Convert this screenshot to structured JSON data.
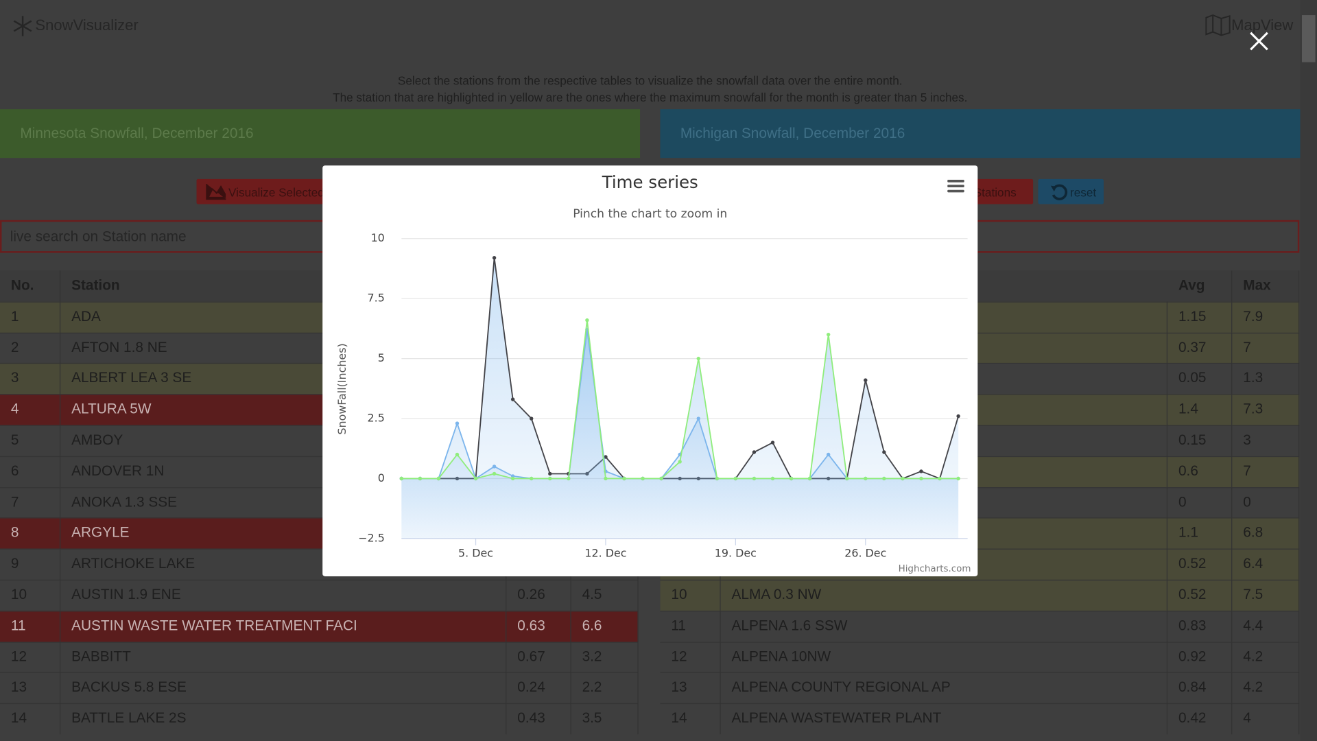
{
  "header": {
    "brand": "SnowVisualizer",
    "map_view": "MapView"
  },
  "instructions": [
    "Select the stations from the respective tables to visualize the snowfall data over the entire month.",
    "The station that are highlighted in yellow are the ones where the maximum snowfall for the month is greater than 5 inches."
  ],
  "panels": {
    "minnesota": "Minnesota Snowfall, December 2016",
    "michigan": "Michigan Snowfall, December 2016"
  },
  "buttons": {
    "visualize": "Visualize Selected",
    "all_stations": "All Stations",
    "reset": "reset"
  },
  "search_placeholder": "live search on Station name",
  "left_table": {
    "columns": [
      "No.",
      "Station"
    ],
    "rows": [
      {
        "no": "1",
        "station": "ADA",
        "highlight": "yellow"
      },
      {
        "no": "2",
        "station": "AFTON 1.8 NE",
        "highlight": "gray"
      },
      {
        "no": "3",
        "station": "ALBERT LEA 3 SE",
        "highlight": "yellow"
      },
      {
        "no": "4",
        "station": "ALTURA 5W",
        "highlight": "red"
      },
      {
        "no": "5",
        "station": "AMBOY",
        "highlight": "gray"
      },
      {
        "no": "6",
        "station": "ANDOVER 1N",
        "highlight": "gray"
      },
      {
        "no": "7",
        "station": "ANOKA 1.3 SSE",
        "highlight": "gray"
      },
      {
        "no": "8",
        "station": "ARGYLE",
        "highlight": "red"
      },
      {
        "no": "9",
        "station": "ARTICHOKE LAKE",
        "highlight": "gray"
      },
      {
        "no": "10",
        "station": "AUSTIN 1.9 ENE",
        "avg": "0.26",
        "max": "4.5",
        "highlight": "gray"
      },
      {
        "no": "11",
        "station": "AUSTIN WASTE WATER TREATMENT FACI",
        "avg": "0.63",
        "max": "6.6",
        "highlight": "red"
      },
      {
        "no": "12",
        "station": "BABBITT",
        "avg": "0.67",
        "max": "3.2",
        "highlight": "gray"
      },
      {
        "no": "13",
        "station": "BACKUS 5.8 ESE",
        "avg": "0.24",
        "max": "2.2",
        "highlight": "gray"
      },
      {
        "no": "14",
        "station": "BATTLE LAKE 2S",
        "avg": "0.43",
        "max": "3.5",
        "highlight": "gray"
      }
    ]
  },
  "right_table": {
    "columns": [
      "Avg",
      "Max"
    ],
    "rows": [
      {
        "avg": "1.15",
        "max": "7.9",
        "highlight": "yellow"
      },
      {
        "avg": "0.37",
        "max": "7",
        "highlight": "yellow"
      },
      {
        "avg": "0.05",
        "max": "1.3",
        "highlight": "gray"
      },
      {
        "avg": "1.4",
        "max": "7.3",
        "highlight": "yellow"
      },
      {
        "avg": "0.15",
        "max": "3",
        "highlight": "gray"
      },
      {
        "avg": "0.6",
        "max": "7",
        "highlight": "yellow"
      },
      {
        "avg": "0",
        "max": "0",
        "highlight": "gray"
      },
      {
        "avg": "1.1",
        "max": "6.8",
        "highlight": "yellow"
      },
      {
        "avg": "0.52",
        "max": "6.4",
        "highlight": "yellow"
      },
      {
        "no": "10",
        "station": "ALMA 0.3 NW",
        "avg": "0.52",
        "max": "7.5",
        "highlight": "yellow"
      },
      {
        "no": "11",
        "station": "ALPENA 1.6 SSW",
        "avg": "0.83",
        "max": "4.4",
        "highlight": "gray"
      },
      {
        "no": "12",
        "station": "ALPENA 10NW",
        "avg": "0.92",
        "max": "4.2",
        "highlight": "gray"
      },
      {
        "no": "13",
        "station": "ALPENA COUNTY REGIONAL AP",
        "avg": "0.84",
        "max": "4.2",
        "highlight": "gray"
      },
      {
        "no": "14",
        "station": "ALPENA WASTEWATER PLANT",
        "avg": "0.42",
        "max": "4",
        "highlight": "gray"
      }
    ]
  },
  "chart_data": {
    "type": "area",
    "title": "Time series",
    "subtitle": "Pinch the chart to zoom in",
    "y_label": "SnowFall(Inches)",
    "credits": "Highcharts.com",
    "x": [
      1,
      2,
      3,
      4,
      5,
      6,
      7,
      8,
      9,
      10,
      11,
      12,
      13,
      14,
      15,
      16,
      17,
      18,
      19,
      20,
      21,
      22,
      23,
      24,
      25,
      26,
      27,
      28,
      29,
      30,
      31
    ],
    "xlim": [
      1,
      31.5
    ],
    "xticks": [
      {
        "value": 5,
        "label": "5. Dec"
      },
      {
        "value": 12,
        "label": "12. Dec"
      },
      {
        "value": 19,
        "label": "19. Dec"
      },
      {
        "value": 26,
        "label": "26. Dec"
      }
    ],
    "ylim": [
      -2.5,
      10
    ],
    "yticks": [
      {
        "value": -2.5,
        "label": "−2.5"
      },
      0,
      2.5,
      5,
      7.5,
      10
    ],
    "grid": true,
    "fill_color": "#7cb5ec",
    "series": [
      {
        "color": "#434348",
        "values": [
          0,
          0,
          0,
          0,
          0,
          9.2,
          3.3,
          2.5,
          0.2,
          0.2,
          0.2,
          0.9,
          0,
          0,
          0,
          0,
          0,
          0,
          0,
          1.1,
          1.5,
          0,
          0,
          0,
          0,
          4.1,
          1.1,
          0,
          0.3,
          0,
          2.6
        ]
      },
      {
        "color": "#7cb5ec",
        "values": [
          0,
          0,
          0,
          2.3,
          0,
          0.5,
          0.1,
          0,
          0,
          0,
          6.2,
          0.3,
          0,
          0,
          0,
          1,
          2.5,
          0,
          0,
          0,
          0,
          0,
          0,
          1,
          0,
          0,
          0,
          0,
          0,
          0,
          0
        ]
      },
      {
        "color": "#90ed7d",
        "values": [
          0,
          0,
          0,
          1,
          0,
          0.2,
          0,
          0,
          0,
          0,
          6.6,
          0,
          0,
          0,
          0,
          0.7,
          5,
          0,
          0,
          0,
          0,
          0,
          0,
          6,
          0,
          0,
          0,
          0,
          0,
          0,
          0
        ]
      }
    ]
  }
}
